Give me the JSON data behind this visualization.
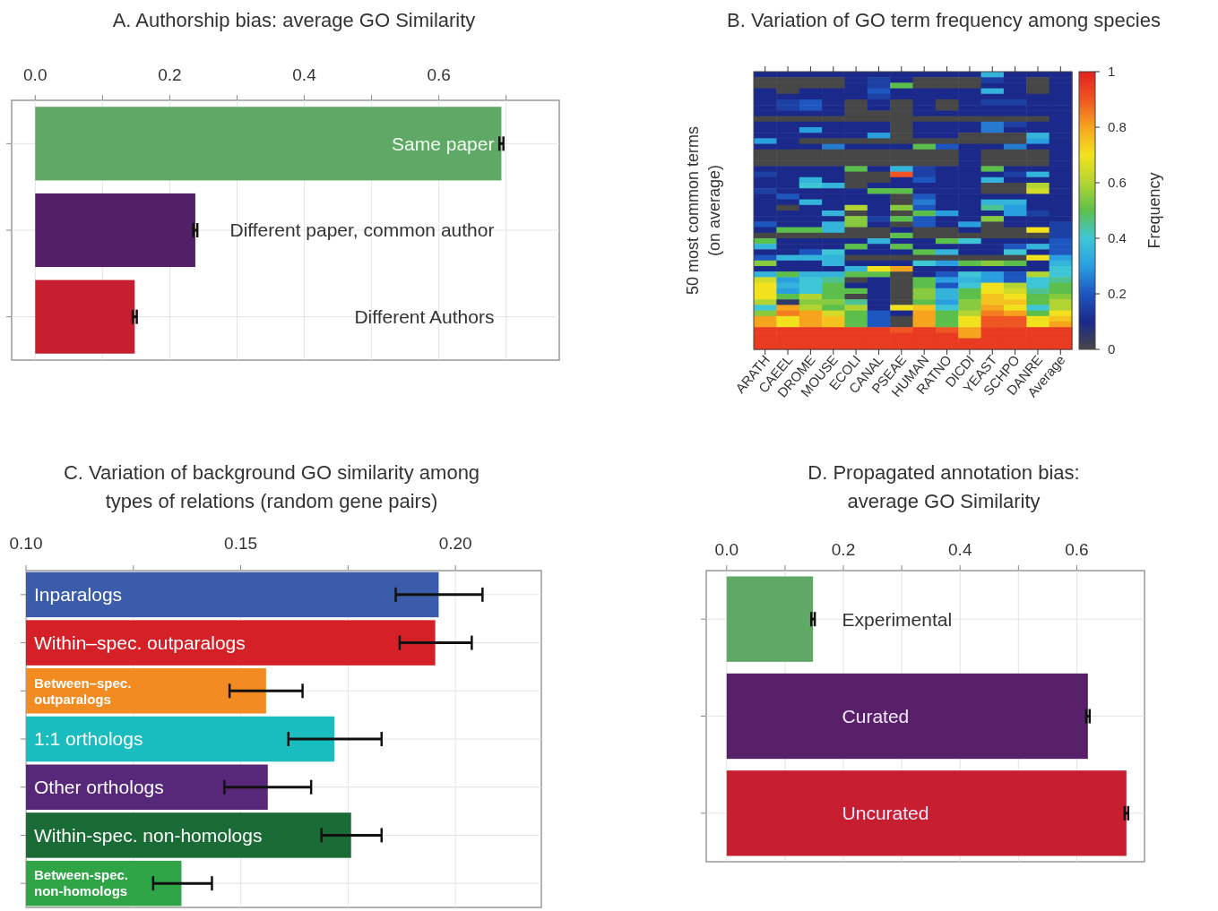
{
  "chart_data": [
    {
      "type": "bar",
      "orientation": "horizontal",
      "title": "A. Authorship bias: average GO Similarity",
      "categories": [
        "Same paper",
        "Different paper, common author",
        "Different Authors"
      ],
      "values": [
        0.693,
        0.238,
        0.148
      ],
      "errors": [
        0.003,
        0.003,
        0.003
      ],
      "colors": [
        "#5fa865",
        "#531f66",
        "#c81f30"
      ],
      "xlim": [
        -0.035,
        0.779
      ],
      "xticks": [
        {
          "value": 0,
          "label": "0.0"
        },
        {
          "value": 0.1,
          "label": null
        },
        0.2,
        {
          "value": 0.3,
          "label": null
        },
        0.4,
        {
          "value": 0.5,
          "label": null
        },
        0.6,
        {
          "value": 0.7,
          "label": null
        }
      ],
      "grid": true,
      "tick_labels": "x"
    },
    {
      "type": "heatmap",
      "title": "B. Variation of GO term frequency among species",
      "ylabel": "50 most common terms\n(on average)",
      "clabel": "Frequency",
      "clim": [
        0,
        1
      ],
      "cticks": [
        0,
        0.2,
        0.4,
        0.6,
        0.8,
        1
      ],
      "tick_labels": "x",
      "categories": [
        "ARATH",
        "CAEEL",
        "DROME",
        "MOUSE",
        "ECOLI",
        "CANAL",
        "PSEAE",
        "HUMAN",
        "RATNO",
        "DICDI",
        "YEAST",
        "SCHPO",
        "DANRE",
        "Average"
      ],
      "y_categories": [
        null,
        null,
        null,
        null,
        null,
        null,
        null,
        null,
        null,
        null,
        null,
        null,
        null,
        null,
        null,
        null,
        null,
        null,
        null,
        null,
        null,
        null,
        null,
        null,
        null,
        null,
        null,
        null,
        null,
        null,
        null,
        null,
        null,
        null,
        null,
        null,
        null,
        null,
        null,
        null,
        null,
        null,
        null,
        null,
        null,
        null,
        null,
        null,
        null,
        null
      ],
      "cells": [
        [
          0.1,
          0.1,
          0.1,
          0.1,
          0.1,
          0.1,
          0.1,
          0.1,
          0.1,
          0.1,
          0.35,
          0.1,
          0.1,
          0.1
        ],
        [
          0,
          0,
          0,
          0,
          0.1,
          0.15,
          0.1,
          0,
          0,
          0,
          0.15,
          0.1,
          0,
          0.1
        ],
        [
          0,
          0,
          0,
          0,
          0.1,
          0.15,
          0.5,
          0,
          0,
          0,
          0.1,
          0.1,
          0,
          0.1
        ],
        [
          0.1,
          0,
          0.1,
          0.1,
          0.1,
          0.2,
          0.1,
          0.1,
          0.1,
          0.1,
          0.35,
          0.1,
          0,
          0.1
        ],
        [
          0.1,
          0.1,
          0.1,
          0.1,
          0.1,
          0.15,
          0.1,
          0.1,
          0.1,
          0.1,
          0.1,
          0.1,
          0.1,
          0.1
        ],
        [
          0.1,
          0.15,
          0.2,
          0.1,
          0,
          0.1,
          0,
          0.1,
          0,
          0.1,
          0.15,
          0.15,
          0.1,
          0.1
        ],
        [
          0.1,
          0.15,
          0.2,
          0.1,
          0,
          0.1,
          0,
          0.1,
          0,
          0.1,
          0.1,
          0.1,
          0.1,
          0.1
        ],
        [
          0.1,
          0.1,
          0.1,
          0.1,
          0,
          0,
          0,
          0.1,
          0.1,
          0.1,
          0.1,
          0.1,
          0.1,
          0.1
        ],
        [
          0,
          0,
          0,
          0,
          0,
          0,
          0,
          0,
          0,
          0,
          0,
          0,
          0,
          0.1
        ],
        [
          0.1,
          0.1,
          0.1,
          0.1,
          0.1,
          0.1,
          0,
          0.1,
          0.1,
          0.1,
          0.25,
          0.15,
          0.1,
          0.1
        ],
        [
          0.1,
          0.1,
          0.3,
          0.1,
          0.1,
          0.1,
          0,
          0.1,
          0.1,
          0.1,
          0.25,
          0.1,
          0.1,
          0.1
        ],
        [
          0.1,
          0.1,
          0.1,
          0.1,
          0.1,
          0.3,
          0,
          0.1,
          0.1,
          0,
          0,
          0,
          0.35,
          0.1
        ],
        [
          0.3,
          0.1,
          0,
          0,
          0,
          0,
          0,
          0,
          0,
          0,
          0,
          0,
          0.3,
          0.1
        ],
        [
          0.1,
          0.1,
          0.1,
          0.25,
          0.1,
          0.1,
          0.1,
          0.5,
          0.2,
          0.1,
          0.1,
          0.25,
          0.1,
          0.1
        ],
        [
          0,
          0,
          0,
          0,
          0,
          0,
          0,
          0,
          0,
          0.1,
          0,
          0,
          0,
          0.1
        ],
        [
          0,
          0,
          0,
          0,
          0,
          0,
          0,
          0,
          0,
          0.1,
          0,
          0,
          0,
          0.1
        ],
        [
          0,
          0,
          0,
          0,
          0,
          0,
          0,
          0,
          0,
          0.1,
          0,
          0,
          0,
          0.1
        ],
        [
          0.1,
          0.1,
          0.1,
          0.1,
          0.5,
          0.1,
          0.35,
          0.15,
          0.1,
          0.1,
          0.5,
          0.1,
          0.1,
          0.1
        ],
        [
          0.15,
          0.1,
          0.1,
          0.1,
          0,
          0,
          0.9,
          0.15,
          0.1,
          0.1,
          0.1,
          0.15,
          0.35,
          0.1
        ],
        [
          0.1,
          0.1,
          0.35,
          0.1,
          0,
          0,
          0.1,
          0.2,
          0.1,
          0.1,
          0.35,
          0.1,
          0.1,
          0.1
        ],
        [
          0.1,
          0.1,
          0.4,
          0.35,
          0,
          0.1,
          0.1,
          0.1,
          0.1,
          0.1,
          0,
          0,
          0.6,
          0.1
        ],
        [
          0.15,
          0.1,
          0.1,
          0.1,
          0.1,
          0.5,
          0.5,
          0.1,
          0.1,
          0.1,
          0,
          0,
          0.65,
          0.1
        ],
        [
          0.1,
          0.2,
          0.1,
          0.1,
          0.1,
          0.1,
          0,
          0.2,
          0.1,
          0.1,
          0.1,
          0.1,
          0.1,
          0.1
        ],
        [
          0.1,
          0.1,
          0.35,
          0.1,
          0.1,
          0.1,
          0,
          0.25,
          0.1,
          0.1,
          0.35,
          0.35,
          0.1,
          0.1
        ],
        [
          0.1,
          0,
          0.1,
          0.1,
          0.6,
          0.1,
          0.55,
          0.2,
          0.1,
          0.1,
          0.45,
          0.3,
          0.1,
          0.1
        ],
        [
          0.1,
          0.1,
          0.1,
          0.35,
          0,
          0.1,
          0,
          0.5,
          0.3,
          0.1,
          0.1,
          0.3,
          0.15,
          0.1
        ],
        [
          0.1,
          0.1,
          0.1,
          0.1,
          0.55,
          0.15,
          0.5,
          0.2,
          0.1,
          0.1,
          0.55,
          0.1,
          0.1,
          0.1
        ],
        [
          0.2,
          0.1,
          0.1,
          0.35,
          0.55,
          0.1,
          0,
          0.2,
          0.1,
          0.3,
          0,
          0.1,
          0.1,
          0.15
        ],
        [
          0.1,
          0.5,
          0.5,
          0.35,
          0,
          0,
          0.1,
          0,
          0,
          0.1,
          0,
          0,
          0.7,
          0.15
        ],
        [
          0,
          0,
          0,
          0,
          0,
          0,
          0.5,
          0,
          0,
          0,
          0,
          0,
          0,
          0.15
        ],
        [
          0.5,
          0.1,
          0.1,
          0.1,
          0.1,
          0.35,
          0.1,
          0.1,
          0.5,
          0.4,
          0.1,
          0.1,
          0.1,
          0.2
        ],
        [
          0.35,
          0.1,
          0.1,
          0.1,
          0.5,
          0.1,
          0.5,
          0.1,
          0.1,
          0.1,
          0.1,
          0.2,
          0.35,
          0.2
        ],
        [
          0.1,
          0.1,
          0.2,
          0.4,
          0.1,
          0.1,
          0.1,
          0.5,
          0.35,
          0.1,
          0.1,
          0.4,
          0.1,
          0.2
        ],
        [
          0.2,
          0.35,
          0.35,
          0.35,
          0,
          0,
          0,
          0,
          0,
          0,
          0,
          0,
          0.7,
          0.3
        ],
        [
          0.55,
          0.1,
          0.1,
          0.35,
          0.1,
          0.1,
          0.1,
          0.4,
          0.3,
          0.5,
          0.55,
          0.5,
          0.1,
          0.35
        ],
        [
          0.1,
          0.1,
          0.1,
          0.1,
          0.35,
          0.7,
          0.8,
          0.1,
          0.1,
          0.1,
          0.1,
          0.1,
          0.1,
          0.4
        ],
        [
          0.35,
          0.5,
          0.35,
          0.35,
          0.5,
          0.5,
          0,
          0.1,
          0.2,
          0.4,
          0.3,
          0.2,
          0.6,
          0.4
        ],
        [
          0.65,
          0.3,
          0.4,
          0.45,
          0,
          0.1,
          0,
          0.5,
          0.3,
          0.35,
          0.3,
          0.2,
          0.4,
          0.45
        ],
        [
          0.7,
          0.35,
          0.4,
          0.5,
          0.1,
          0.1,
          0,
          0.5,
          0.2,
          0.4,
          0.7,
          0.6,
          0.4,
          0.5
        ],
        [
          0.7,
          0.3,
          0.4,
          0.5,
          0.5,
          0.1,
          0,
          0.55,
          0.35,
          0.5,
          0.7,
          0.65,
          0.45,
          0.5
        ],
        [
          0.7,
          0.5,
          0.6,
          0.5,
          0,
          0.1,
          0,
          0.55,
          0.35,
          0.5,
          0.75,
          0.7,
          0.5,
          0.55
        ],
        [
          0.6,
          0.05,
          0.55,
          0.55,
          0.45,
          0.1,
          0,
          0.5,
          0.3,
          0.55,
          0.75,
          0.75,
          0.5,
          0.6
        ],
        [
          0.4,
          0.8,
          0.6,
          0.5,
          0.6,
          0.1,
          0.7,
          0.75,
          0.4,
          0.55,
          0.8,
          0.7,
          0.4,
          0.6
        ],
        [
          0.55,
          0.85,
          0.8,
          0.65,
          0.5,
          0.2,
          0.1,
          0.8,
          0.5,
          0.6,
          0.85,
          0.8,
          0.5,
          0.7
        ],
        [
          0.8,
          0.7,
          0.8,
          0.75,
          0.5,
          0.2,
          0,
          0.8,
          0.5,
          0.7,
          0.9,
          0.9,
          0.7,
          0.75
        ],
        [
          0.8,
          0.7,
          0.8,
          0.75,
          0.5,
          0.2,
          0,
          0.8,
          0.5,
          0.7,
          0.9,
          0.9,
          0.7,
          0.8
        ],
        [
          0.95,
          0.95,
          0.95,
          0.95,
          0.95,
          0.95,
          0.9,
          0.95,
          0.9,
          0.8,
          0.95,
          0.95,
          0.95,
          0.95
        ],
        [
          0.95,
          0.95,
          0.95,
          0.95,
          0.95,
          0.95,
          0.95,
          0.95,
          0.95,
          0.8,
          0.95,
          0.95,
          0.95,
          0.95
        ],
        [
          0.95,
          0.95,
          0.95,
          0.95,
          0.95,
          0.95,
          0.95,
          0.95,
          0.95,
          0.95,
          0.95,
          0.95,
          0.95,
          0.95
        ],
        [
          0.95,
          0.95,
          0.95,
          0.95,
          0.95,
          0.95,
          0.95,
          0.95,
          0.95,
          0.95,
          0.95,
          0.95,
          0.95,
          0.95
        ]
      ]
    },
    {
      "type": "bar",
      "orientation": "horizontal",
      "title": "C. Variation of background GO similarity among types of relations (random gene pairs)",
      "categories": [
        "Inparalogs",
        "Within–spec. outparalogs",
        "Between–spec. outparalogs",
        "1:1 orthologs",
        "Other orthologs",
        "Within-spec. non-homologs",
        "Between-spec. non-homologs"
      ],
      "values": [
        0.1961,
        0.1953,
        0.1559,
        0.1718,
        0.1563,
        0.1757,
        0.1362
      ],
      "errors": [
        [
          0.1861,
          0.2063
        ],
        [
          0.187,
          0.2038
        ],
        [
          0.1474,
          0.1644
        ],
        [
          0.1611,
          0.1828
        ],
        [
          0.1462,
          0.1664
        ],
        [
          0.1688,
          0.1828
        ],
        [
          0.1296,
          0.1433
        ]
      ],
      "colors": [
        "#3b5bab",
        "#d62027",
        "#f18b22",
        "#19bcbf",
        "#572779",
        "#1a6b35",
        "#2fa548"
      ],
      "xlim": [
        0.1,
        0.22
      ],
      "xticks": [
        {
          "value": 0.1,
          "label": "0.10"
        },
        {
          "value": 0.125,
          "label": null
        },
        0.15,
        {
          "value": 0.175,
          "label": null
        },
        {
          "value": 0.2,
          "label": "0.20"
        }
      ],
      "grid": true,
      "tick_labels": "x"
    },
    {
      "type": "bar",
      "orientation": "horizontal",
      "title": "D. Propagated annotation bias: average GO Similarity",
      "categories": [
        "Experimental",
        "Curated",
        "Uncurated"
      ],
      "values": [
        0.148,
        0.619,
        0.685
      ],
      "errors": [
        0.003,
        0.003,
        0.003
      ],
      "colors": [
        "#5fa865",
        "#572068",
        "#c81f30"
      ],
      "xlim": [
        -0.035,
        0.716
      ],
      "xticks": [
        {
          "value": 0,
          "label": "0.0"
        },
        {
          "value": 0.1,
          "label": null
        },
        0.2,
        {
          "value": 0.3,
          "label": null
        },
        0.4,
        {
          "value": 0.5,
          "label": null
        },
        0.6
      ],
      "grid": true,
      "tick_labels": "x"
    }
  ]
}
